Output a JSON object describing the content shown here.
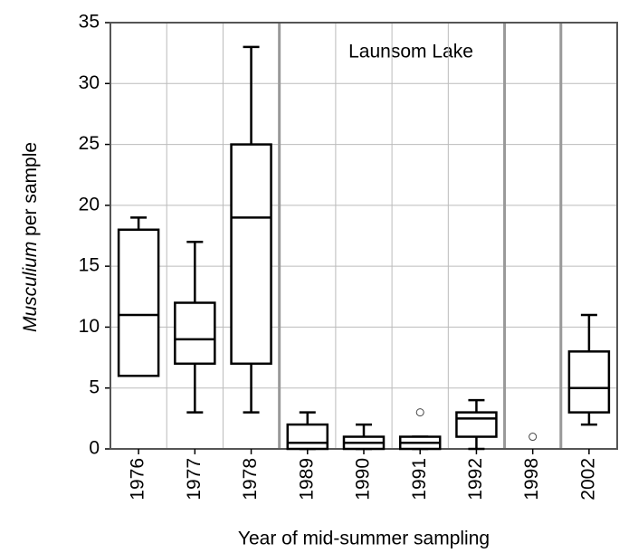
{
  "chart_data": {
    "type": "box",
    "annotation": "Launsom Lake",
    "xlabel": "Year of mid-summer sampling",
    "ylabel_italic": "Musculium",
    "ylabel": "per sample",
    "categories": [
      "1976",
      "1977",
      "1978",
      "1989",
      "1990",
      "1991",
      "1992",
      "1998",
      "2002"
    ],
    "min": [
      6,
      3,
      3,
      0,
      0,
      0,
      0,
      null,
      2
    ],
    "q1": [
      6,
      7,
      7,
      0,
      0,
      0,
      1,
      null,
      3
    ],
    "median": [
      11,
      9,
      19,
      0.5,
      0.5,
      0.5,
      2.5,
      null,
      5
    ],
    "q3": [
      18,
      12,
      25,
      2,
      1,
      1,
      3,
      null,
      8
    ],
    "max": [
      19,
      17,
      33,
      3,
      2,
      1,
      4,
      null,
      11
    ],
    "outliers": [
      [],
      [],
      [],
      [],
      [],
      [
        3
      ],
      [],
      [
        1
      ],
      []
    ],
    "ylim": [
      0,
      35
    ],
    "yticks": [
      0,
      5,
      10,
      15,
      20,
      25,
      30,
      35
    ],
    "grid": true,
    "color": "#000000"
  }
}
